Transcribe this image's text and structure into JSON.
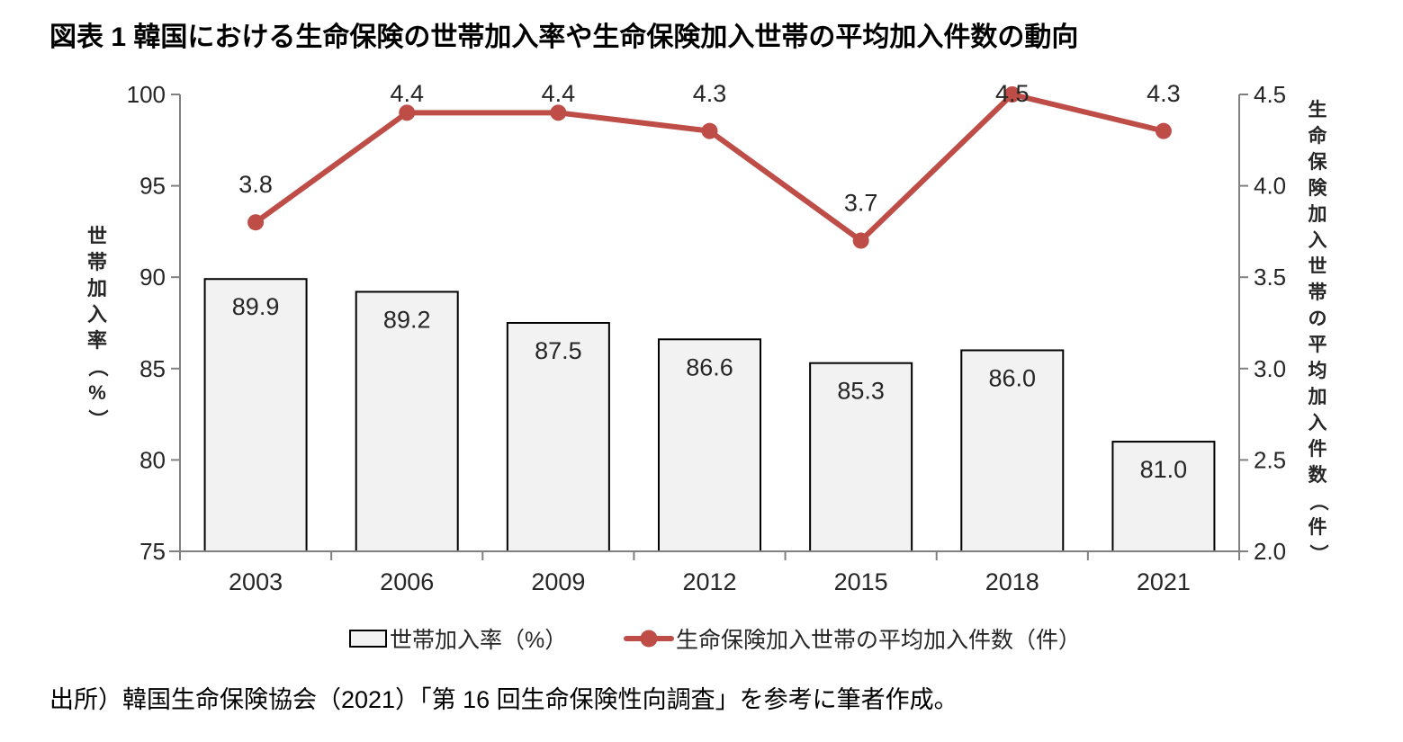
{
  "title": "図表 1 韓国における生命保険の世帯加入率や生命保険加入世帯の平均加入件数の動向",
  "source": "出所）韓国生命保険協会（2021）「第 16 回生命保険性向調査」を参考に筆者作成。",
  "chart_data": {
    "type": "bar+line combo",
    "categories": [
      "2003",
      "2006",
      "2009",
      "2012",
      "2015",
      "2018",
      "2021"
    ],
    "series": [
      {
        "name": "世帯加入率（%）",
        "type": "bar",
        "axis": "left",
        "values": [
          89.9,
          89.2,
          87.5,
          86.6,
          85.3,
          86.0,
          81.0
        ],
        "labels": [
          "89.9",
          "89.2",
          "87.5",
          "86.6",
          "85.3",
          "86.0",
          "81.0"
        ],
        "fill": "#f2f2f2",
        "stroke": "#000000"
      },
      {
        "name": "生命保険加入世帯の平均加入件数（件）",
        "type": "line",
        "axis": "right",
        "values": [
          3.8,
          4.4,
          4.4,
          4.3,
          3.7,
          4.5,
          4.3
        ],
        "labels": [
          "3.8",
          "4.4",
          "4.4",
          "4.3",
          "3.7",
          "4.5",
          "4.3"
        ],
        "color": "#bf4d47"
      }
    ],
    "left_axis": {
      "title": "世帯加入率（%）",
      "min": 75,
      "max": 100,
      "ticks": [
        "75",
        "80",
        "85",
        "90",
        "95",
        "100"
      ]
    },
    "right_axis": {
      "title": "生命保険加入世帯の平均加入件数（件）",
      "min": 2.0,
      "max": 4.5,
      "ticks": [
        "2.0",
        "2.5",
        "3.0",
        "3.5",
        "4.0",
        "4.5"
      ]
    },
    "axis_color": "#808080",
    "text_color": "#262626",
    "grid": "off",
    "legend_position": "bottom",
    "data_labels": "on"
  }
}
